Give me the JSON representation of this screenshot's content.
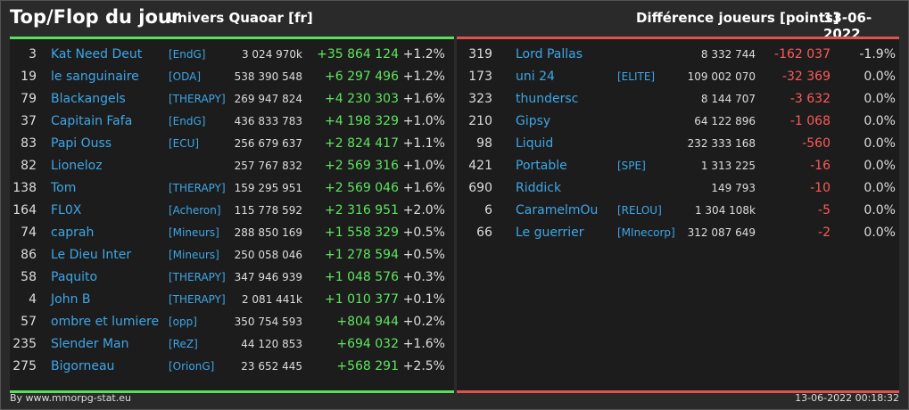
{
  "header": {
    "title": "Top/Flop du jour",
    "universe": "Univers Quaoar [fr]",
    "metric": "Différence joueurs [points]",
    "date": "13-06-2022"
  },
  "top": [
    {
      "rank": "3",
      "name": "Kat Need Deut",
      "ally": "[EndG]",
      "points": "3 024 970k",
      "delta": "+35 864 124",
      "pct": "+1.2%"
    },
    {
      "rank": "19",
      "name": "le sanguinaire",
      "ally": "[ODA]",
      "points": "538 390 548",
      "delta": "+6 297 496",
      "pct": "+1.2%"
    },
    {
      "rank": "79",
      "name": "Blackangels",
      "ally": "[THERAPY]",
      "points": "269 947 824",
      "delta": "+4 230 303",
      "pct": "+1.6%"
    },
    {
      "rank": "37",
      "name": "Capitain Fafa",
      "ally": "[EndG]",
      "points": "436 833 783",
      "delta": "+4 198 329",
      "pct": "+1.0%"
    },
    {
      "rank": "83",
      "name": "Papi Ouss",
      "ally": "[ECU]",
      "points": "256 679 637",
      "delta": "+2 824 417",
      "pct": "+1.1%"
    },
    {
      "rank": "82",
      "name": "Lioneloz",
      "ally": "",
      "points": "257 767 832",
      "delta": "+2 569 316",
      "pct": "+1.0%"
    },
    {
      "rank": "138",
      "name": "Tom",
      "ally": "[THERAPY]",
      "points": "159 295 951",
      "delta": "+2 569 046",
      "pct": "+1.6%"
    },
    {
      "rank": "164",
      "name": "FL0X",
      "ally": "[Acheron]",
      "points": "115 778 592",
      "delta": "+2 316 951",
      "pct": "+2.0%"
    },
    {
      "rank": "74",
      "name": "caprah",
      "ally": "[Mineurs]",
      "points": "288 850 169",
      "delta": "+1 558 329",
      "pct": "+0.5%"
    },
    {
      "rank": "86",
      "name": "Le Dieu Inter",
      "ally": "[Mineurs]",
      "points": "250 058 046",
      "delta": "+1 278 594",
      "pct": "+0.5%"
    },
    {
      "rank": "58",
      "name": "Paquito",
      "ally": "[THERAPY]",
      "points": "347 946 939",
      "delta": "+1 048 576",
      "pct": "+0.3%"
    },
    {
      "rank": "4",
      "name": "John B",
      "ally": "[THERAPY]",
      "points": "2 081 441k",
      "delta": "+1 010 377",
      "pct": "+0.1%"
    },
    {
      "rank": "57",
      "name": "ombre et lumiere",
      "ally": "[opp]",
      "points": "350 754 593",
      "delta": "+804 944",
      "pct": "+0.2%"
    },
    {
      "rank": "235",
      "name": "Slender Man",
      "ally": "[ReZ]",
      "points": "44 120 853",
      "delta": "+694 032",
      "pct": "+1.6%"
    },
    {
      "rank": "275",
      "name": "Bigorneau",
      "ally": "[OrionG]",
      "points": "23 652 445",
      "delta": "+568 291",
      "pct": "+2.5%"
    }
  ],
  "flop": [
    {
      "rank": "319",
      "name": "Lord Pallas",
      "ally": "",
      "points": "8 332 744",
      "delta": "-162 037",
      "pct": "-1.9%"
    },
    {
      "rank": "173",
      "name": "uni 24",
      "ally": "[ELITE]",
      "points": "109 002 070",
      "delta": "-32 369",
      "pct": "0.0%"
    },
    {
      "rank": "323",
      "name": "thundersc",
      "ally": "",
      "points": "8 144 707",
      "delta": "-3 632",
      "pct": "0.0%"
    },
    {
      "rank": "210",
      "name": "Gipsy",
      "ally": "",
      "points": "64 122 896",
      "delta": "-1 068",
      "pct": "0.0%"
    },
    {
      "rank": "98",
      "name": "Liquid",
      "ally": "",
      "points": "232 333 168",
      "delta": "-560",
      "pct": "0.0%"
    },
    {
      "rank": "421",
      "name": "Portable",
      "ally": "[SPE]",
      "points": "1 313 225",
      "delta": "-16",
      "pct": "0.0%"
    },
    {
      "rank": "690",
      "name": "Riddick",
      "ally": "",
      "points": "149 793",
      "delta": "-10",
      "pct": "0.0%"
    },
    {
      "rank": "6",
      "name": "CaramelmOu",
      "ally": "[RELOU]",
      "points": "1 304 108k",
      "delta": "-5",
      "pct": "0.0%"
    },
    {
      "rank": "66",
      "name": "Le guerrier",
      "ally": "[MInecorp]",
      "points": "312 087 649",
      "delta": "-2",
      "pct": "0.0%"
    }
  ],
  "footer": {
    "credit": "By www.mmorpg-stat.eu",
    "timestamp": "13-06-2022 00:18:32"
  },
  "colors": {
    "top_accent": "#58e05a",
    "flop_accent": "#e0524e",
    "link": "#3da7e8"
  }
}
